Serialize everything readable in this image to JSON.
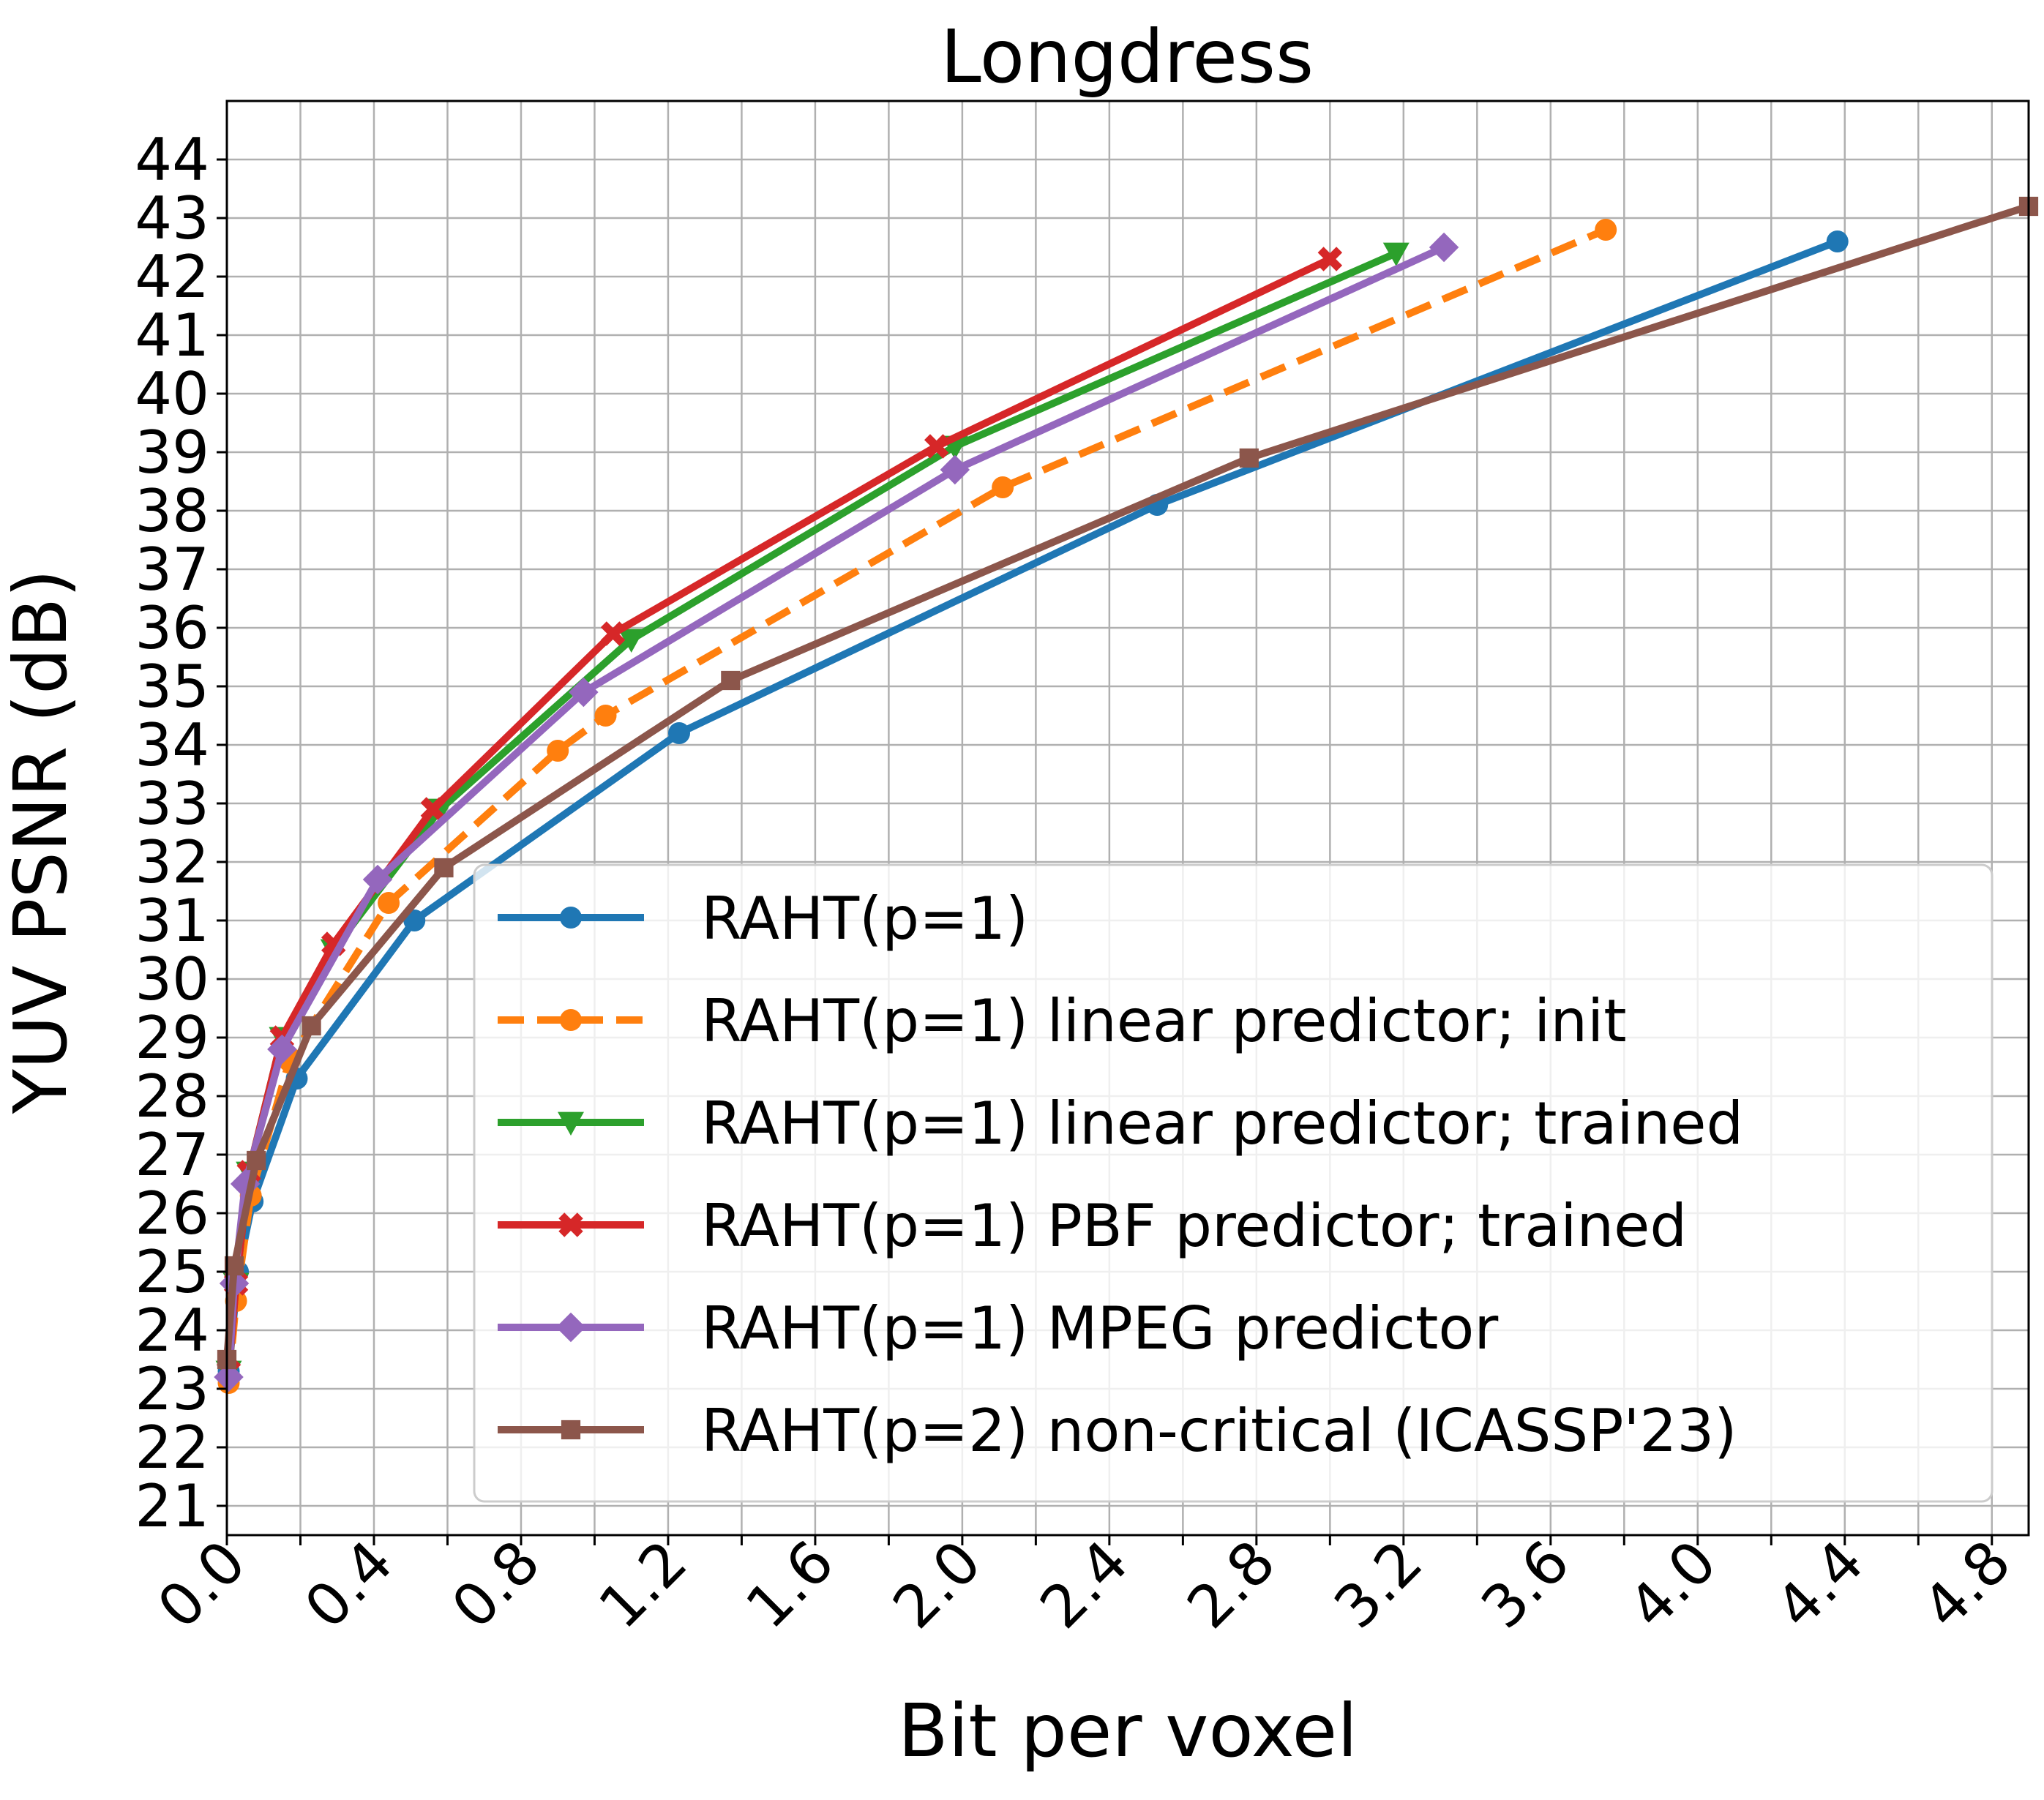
{
  "chart_data": {
    "type": "line",
    "title": "Longdress",
    "xlabel": "Bit per voxel",
    "ylabel": "YUV PSNR (dB)",
    "xlim": [
      0.0,
      4.9
    ],
    "ylim": [
      20.5,
      45.0
    ],
    "x_ticks": [
      "0.0",
      "0.2",
      "0.4",
      "0.6",
      "0.8",
      "1.0",
      "1.2",
      "1.4",
      "1.6",
      "1.8",
      "2.0",
      "2.2",
      "2.4",
      "2.6",
      "2.8",
      "3.0",
      "3.2",
      "3.4",
      "3.6",
      "3.8",
      "4.0",
      "4.2",
      "4.4",
      "4.6",
      "4.8"
    ],
    "x_tick_labels": [
      "0.0",
      "",
      "0.4",
      "",
      "0.8",
      "",
      "1.2",
      "",
      "1.6",
      "",
      "2.0",
      "",
      "2.4",
      "",
      "2.8",
      "",
      "3.2",
      "",
      "3.6",
      "",
      "4.0",
      "",
      "4.4",
      "",
      "4.8"
    ],
    "y_ticks": [
      "21",
      "22",
      "23",
      "24",
      "25",
      "26",
      "27",
      "28",
      "29",
      "30",
      "31",
      "32",
      "33",
      "34",
      "35",
      "36",
      "37",
      "38",
      "39",
      "40",
      "41",
      "42",
      "43",
      "44"
    ],
    "grid": true,
    "legend_position": "lower-right",
    "series": [
      {
        "name": "RAHT(p=1)",
        "color": "#1f77b4",
        "marker": "circle",
        "dash": "solid",
        "x": [
          0.005,
          0.03,
          0.07,
          0.19,
          0.51,
          1.23,
          2.53,
          4.38
        ],
        "y": [
          23.3,
          25.0,
          26.2,
          28.3,
          31.0,
          34.2,
          38.1,
          42.6
        ]
      },
      {
        "name": "RAHT(p=1) linear predictor; init",
        "color": "#ff7f0e",
        "marker": "circle",
        "dash": "dashed",
        "x": [
          0.005,
          0.025,
          0.065,
          0.17,
          0.44,
          0.9,
          1.03,
          2.11,
          3.75
        ],
        "y": [
          23.1,
          24.5,
          26.3,
          28.6,
          31.3,
          33.9,
          34.5,
          38.4,
          42.8
        ]
      },
      {
        "name": "RAHT(p=1) linear predictor; trained",
        "color": "#2ca02c",
        "marker": "triangle-down",
        "dash": "solid",
        "x": [
          0.005,
          0.025,
          0.06,
          0.15,
          0.29,
          0.58,
          1.1,
          1.98,
          3.18
        ],
        "y": [
          23.3,
          24.8,
          26.7,
          29.0,
          30.5,
          32.9,
          35.8,
          39.1,
          42.4
        ]
      },
      {
        "name": "RAHT(p=1) PBF predictor; trained",
        "color": "#d62728",
        "marker": "x",
        "dash": "solid",
        "x": [
          0.005,
          0.025,
          0.06,
          0.15,
          0.29,
          0.56,
          1.05,
          1.93,
          3.0
        ],
        "y": [
          23.3,
          24.8,
          26.7,
          29.0,
          30.6,
          32.9,
          35.9,
          39.1,
          42.3
        ]
      },
      {
        "name": "RAHT(p=1) MPEG predictor",
        "color": "#9467bd",
        "marker": "diamond",
        "dash": "solid",
        "x": [
          0.005,
          0.02,
          0.05,
          0.15,
          0.41,
          0.97,
          1.98,
          3.31
        ],
        "y": [
          23.2,
          24.8,
          26.5,
          28.8,
          31.7,
          34.9,
          38.7,
          42.5
        ]
      },
      {
        "name": "RAHT(p=2) non-critical (ICASSP'23)",
        "color": "#8c564b",
        "marker": "square",
        "dash": "solid",
        "x": [
          0.0,
          0.02,
          0.08,
          0.23,
          0.59,
          1.37,
          2.78,
          4.9
        ],
        "y": [
          23.5,
          25.1,
          26.9,
          29.2,
          31.9,
          35.1,
          38.9,
          43.2
        ]
      }
    ]
  }
}
